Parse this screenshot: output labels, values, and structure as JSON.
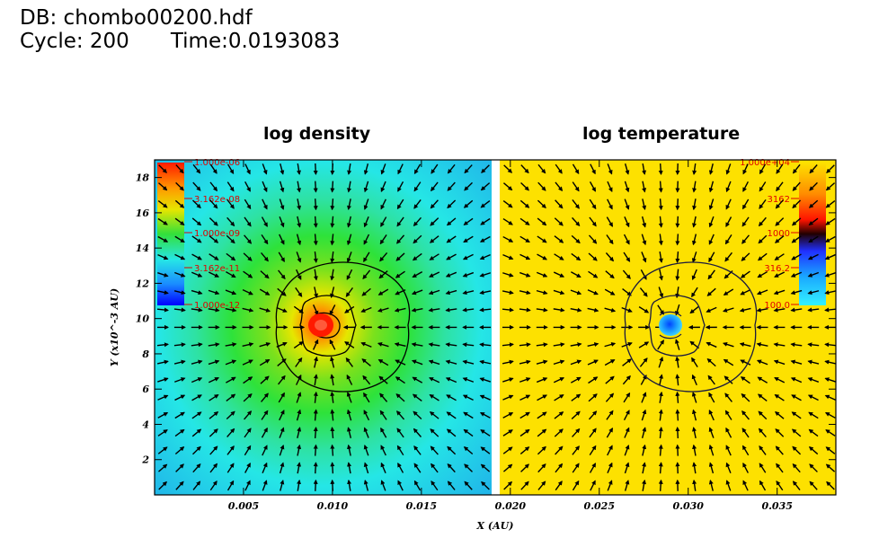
{
  "header": {
    "db_line": "DB: chombo00200.hdf",
    "cycle": "Cycle: 200",
    "time": "Time:0.0193083"
  },
  "chart_data": {
    "type": "heatmap",
    "panels": [
      {
        "title": "log density",
        "colorbar_labels": [
          "1.000e-06",
          "3.162e-08",
          "1.000e-09",
          "3.162e-11",
          "1.000e-12"
        ],
        "colormap": "rainbow",
        "field": "centrally peaked density",
        "center": [
          0.0095,
          9.5
        ]
      },
      {
        "title": "log temperature",
        "colorbar_labels": [
          "1.000e+04",
          "3162",
          "1000",
          "316.2",
          "100.0"
        ],
        "colormap": "hot-cool",
        "field": "uniform temperature with cool core",
        "center": [
          0.0291,
          9.5
        ]
      }
    ],
    "x_ticks": [
      "0.005",
      "0.010",
      "0.015",
      "0.020",
      "0.025",
      "0.030",
      "0.035"
    ],
    "x_tick_values": [
      0.005,
      0.01,
      0.015,
      0.02,
      0.025,
      0.03,
      0.035
    ],
    "y_ticks": [
      "2",
      "4",
      "6",
      "8",
      "10",
      "12",
      "14",
      "16",
      "18"
    ],
    "y_tick_values": [
      2,
      4,
      6,
      8,
      10,
      12,
      14,
      16,
      18
    ],
    "xlabel": "X (AU)",
    "ylabel": "Y (x10^-3 AU)",
    "xlim": [
      0.0,
      0.0383
    ],
    "ylim": [
      0.0,
      19.0
    ],
    "colors": {
      "density_bg": "#25e6e6",
      "temperature_bg": "#fde100",
      "divider": "#ffffff",
      "arrows": "#000000",
      "labels": "#e00000"
    }
  }
}
